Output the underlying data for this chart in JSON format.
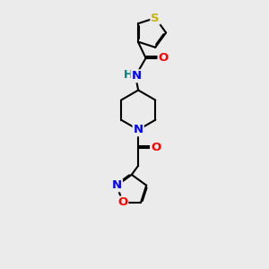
{
  "background_color": "#ebebeb",
  "S_color": "#c8b400",
  "N_color": "#0000ff",
  "O_color": "#ff0000",
  "H_color": "#008080",
  "line_width": 1.5,
  "dbo": 0.055,
  "xlim": [
    0,
    10
  ],
  "ylim": [
    0,
    14
  ]
}
